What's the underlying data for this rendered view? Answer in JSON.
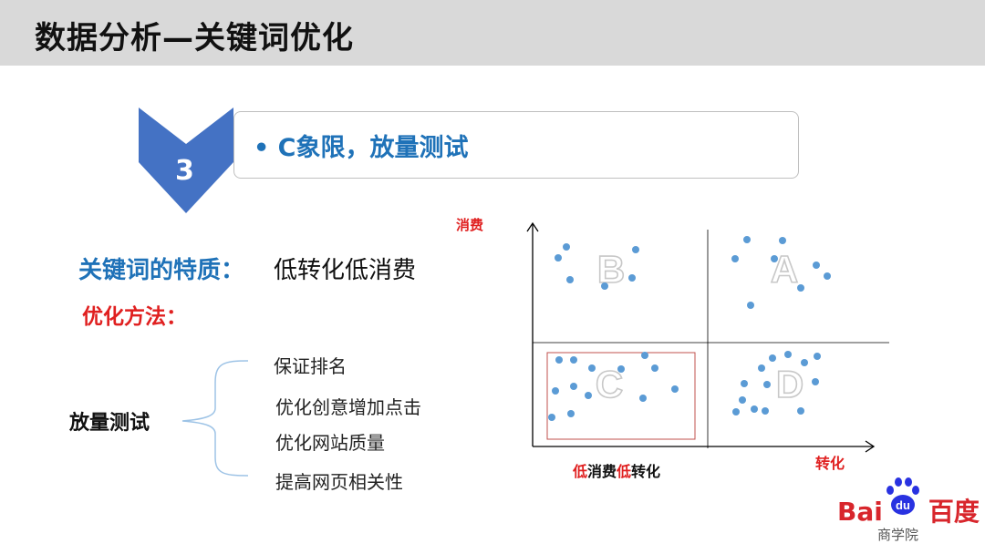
{
  "header": {
    "title": "数据分析—关键词优化"
  },
  "step": {
    "number": "3",
    "text": "• C象限，放量测试"
  },
  "traits": {
    "label": "关键词的特质：",
    "value": "低转化低消费"
  },
  "method": {
    "label": "优化方法："
  },
  "tree": {
    "root": "放量测试",
    "items": [
      "保证排名",
      "优化创意增加点击",
      "优化网站质量",
      "提高网页相关性"
    ]
  },
  "diagram": {
    "y_axis_label": "消费",
    "x_axis_label": "转化",
    "quadrants": [
      "A",
      "B",
      "C",
      "D"
    ],
    "caption_parts": [
      {
        "text": "低",
        "color": "#e02020"
      },
      {
        "text": "消费",
        "color": "#111111"
      },
      {
        "text": "低",
        "color": "#e02020"
      },
      {
        "text": "转化",
        "color": "#111111"
      }
    ],
    "dot_color": "#5b9bd5",
    "highlight_color": "#c0504d"
  },
  "logo": {
    "brand": "Bai",
    "du": "du",
    "cn": "百度",
    "sub": "商学院"
  },
  "colors": {
    "accent_blue": "#1f72b8",
    "chevron": "#4472c4",
    "red": "#e02020"
  }
}
